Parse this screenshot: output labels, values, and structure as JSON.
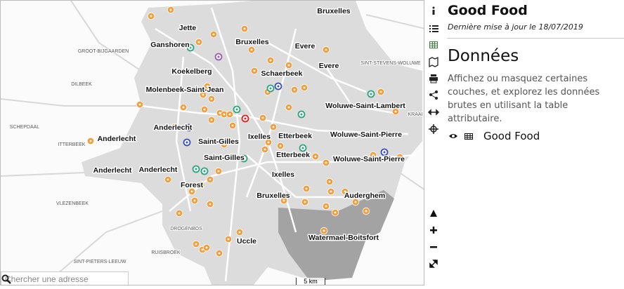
{
  "header": {
    "title": "Good Food",
    "updated": "Dernière mise à jour le 18/07/2019"
  },
  "panel": {
    "heading": "Données",
    "description": "Affichez ou masquez certaines couches, et explorez les données brutes en utilisant la table attributaire.",
    "layer": "Good Food"
  },
  "search": {
    "placeholder": "Chercher une adresse"
  },
  "map": {
    "scale": "5 km",
    "labels": [
      {
        "text": "Bruxelles"
      },
      {
        "text": "Jette"
      },
      {
        "text": "Ganshoren"
      },
      {
        "text": "Bruxelles"
      },
      {
        "text": "Evere"
      },
      {
        "text": "GROOT-BIJGAARDEN"
      },
      {
        "text": "Evere"
      },
      {
        "text": "SINT-STEVENS-WOLUWE"
      },
      {
        "text": "Koekelberg"
      },
      {
        "text": "Schaerbeek"
      },
      {
        "text": "DILBEEK"
      },
      {
        "text": "Molenbeek-Saint-Jean"
      },
      {
        "text": "Woluwe-Saint-Lambert"
      },
      {
        "text": "KRAAI"
      },
      {
        "text": "SCHEPDAAL"
      },
      {
        "text": "Anderlecht"
      },
      {
        "text": "Ixelles"
      },
      {
        "text": "Etterbeek"
      },
      {
        "text": "Woluwe-Saint-Pierre"
      },
      {
        "text": "Anderlecht"
      },
      {
        "text": "ITTERBEEK"
      },
      {
        "text": "Saint-Gilles"
      },
      {
        "text": "Saint-Gilles"
      },
      {
        "text": "Etterbeek"
      },
      {
        "text": "Woluwe-Saint-Pierre"
      },
      {
        "text": "Anderlecht"
      },
      {
        "text": "Anderlecht"
      },
      {
        "text": "Ixelles"
      },
      {
        "text": "Forest"
      },
      {
        "text": "Bruxelles"
      },
      {
        "text": "Auderghem"
      },
      {
        "text": "VLEZENBEEK"
      },
      {
        "text": "DROGENBOS"
      },
      {
        "text": "Watermael-Boitsfort"
      },
      {
        "text": "Uccle"
      },
      {
        "text": "RUISBROEK"
      },
      {
        "text": "SINT-PIETERS-LEEUW"
      }
    ]
  }
}
